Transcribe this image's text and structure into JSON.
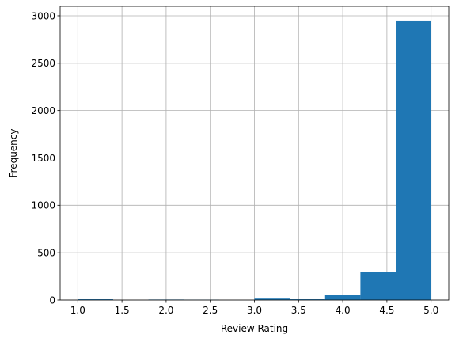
{
  "chart_data": {
    "type": "bar",
    "subtype": "histogram",
    "title": "",
    "xlabel": "Review Rating",
    "ylabel": "Frequency",
    "xlim": [
      0.8,
      5.2
    ],
    "ylim": [
      0,
      3100
    ],
    "grid": true,
    "bar_color": "#1f77b4",
    "grid_color": "#b0b0b0",
    "bin_edges": [
      1.0,
      1.4,
      1.8,
      2.2,
      2.6,
      3.0,
      3.4,
      3.8,
      4.2,
      4.6,
      5.0
    ],
    "values": [
      8,
      0,
      5,
      3,
      0,
      15,
      8,
      55,
      300,
      2950
    ],
    "x_ticks": [
      1.0,
      1.5,
      2.0,
      2.5,
      3.0,
      3.5,
      4.0,
      4.5,
      5.0
    ],
    "x_tick_labels": [
      "1.0",
      "1.5",
      "2.0",
      "2.5",
      "3.0",
      "3.5",
      "4.0",
      "4.5",
      "5.0"
    ],
    "y_ticks": [
      0,
      500,
      1000,
      1500,
      2000,
      2500,
      3000
    ],
    "y_tick_labels": [
      "0",
      "500",
      "1000",
      "1500",
      "2000",
      "2500",
      "3000"
    ]
  }
}
